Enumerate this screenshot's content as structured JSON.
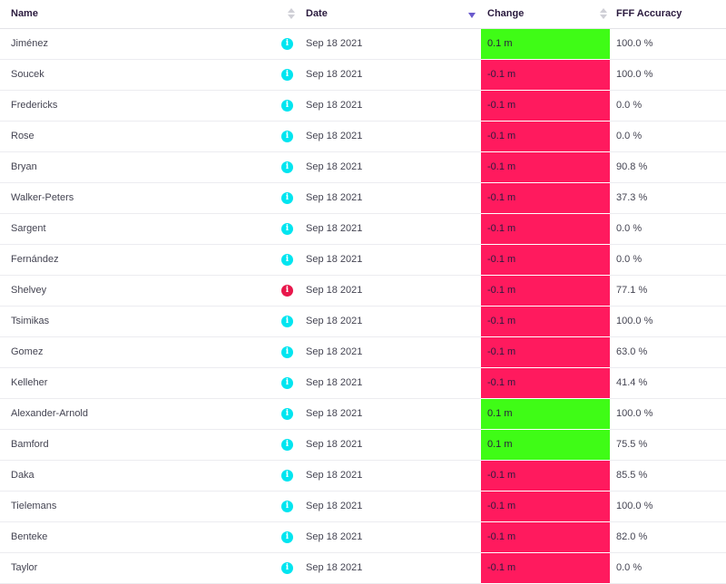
{
  "colors": {
    "positive": "#3ffc16",
    "negative": "#ff1a5e",
    "info_normal": "#00e5f0",
    "info_alert": "#e8174b"
  },
  "header": {
    "name": "Name",
    "date": "Date",
    "change": "Change",
    "accuracy": "FFF Accuracy"
  },
  "rows": [
    {
      "name": "Jiménez",
      "date": "Sep 18 2021",
      "change": "0.1 m",
      "accuracy": "100.0 %",
      "trend": "up",
      "info": "normal"
    },
    {
      "name": "Soucek",
      "date": "Sep 18 2021",
      "change": "-0.1 m",
      "accuracy": "100.0 %",
      "trend": "down",
      "info": "normal"
    },
    {
      "name": "Fredericks",
      "date": "Sep 18 2021",
      "change": "-0.1 m",
      "accuracy": "0.0 %",
      "trend": "down",
      "info": "normal"
    },
    {
      "name": "Rose",
      "date": "Sep 18 2021",
      "change": "-0.1 m",
      "accuracy": "0.0 %",
      "trend": "down",
      "info": "normal"
    },
    {
      "name": "Bryan",
      "date": "Sep 18 2021",
      "change": "-0.1 m",
      "accuracy": "90.8 %",
      "trend": "down",
      "info": "normal"
    },
    {
      "name": "Walker-Peters",
      "date": "Sep 18 2021",
      "change": "-0.1 m",
      "accuracy": "37.3 %",
      "trend": "down",
      "info": "normal"
    },
    {
      "name": "Sargent",
      "date": "Sep 18 2021",
      "change": "-0.1 m",
      "accuracy": "0.0 %",
      "trend": "down",
      "info": "normal"
    },
    {
      "name": "Fernández",
      "date": "Sep 18 2021",
      "change": "-0.1 m",
      "accuracy": "0.0 %",
      "trend": "down",
      "info": "normal"
    },
    {
      "name": "Shelvey",
      "date": "Sep 18 2021",
      "change": "-0.1 m",
      "accuracy": "77.1 %",
      "trend": "down",
      "info": "alert"
    },
    {
      "name": "Tsimikas",
      "date": "Sep 18 2021",
      "change": "-0.1 m",
      "accuracy": "100.0 %",
      "trend": "down",
      "info": "normal"
    },
    {
      "name": "Gomez",
      "date": "Sep 18 2021",
      "change": "-0.1 m",
      "accuracy": "63.0 %",
      "trend": "down",
      "info": "normal"
    },
    {
      "name": "Kelleher",
      "date": "Sep 18 2021",
      "change": "-0.1 m",
      "accuracy": "41.4 %",
      "trend": "down",
      "info": "normal"
    },
    {
      "name": "Alexander-Arnold",
      "date": "Sep 18 2021",
      "change": "0.1 m",
      "accuracy": "100.0 %",
      "trend": "up",
      "info": "normal"
    },
    {
      "name": "Bamford",
      "date": "Sep 18 2021",
      "change": "0.1 m",
      "accuracy": "75.5 %",
      "trend": "up",
      "info": "normal"
    },
    {
      "name": "Daka",
      "date": "Sep 18 2021",
      "change": "-0.1 m",
      "accuracy": "85.5 %",
      "trend": "down",
      "info": "normal"
    },
    {
      "name": "Tielemans",
      "date": "Sep 18 2021",
      "change": "-0.1 m",
      "accuracy": "100.0 %",
      "trend": "down",
      "info": "normal"
    },
    {
      "name": "Benteke",
      "date": "Sep 18 2021",
      "change": "-0.1 m",
      "accuracy": "82.0 %",
      "trend": "down",
      "info": "normal"
    },
    {
      "name": "Taylor",
      "date": "Sep 18 2021",
      "change": "-0.1 m",
      "accuracy": "0.0 %",
      "trend": "down",
      "info": "normal"
    }
  ]
}
